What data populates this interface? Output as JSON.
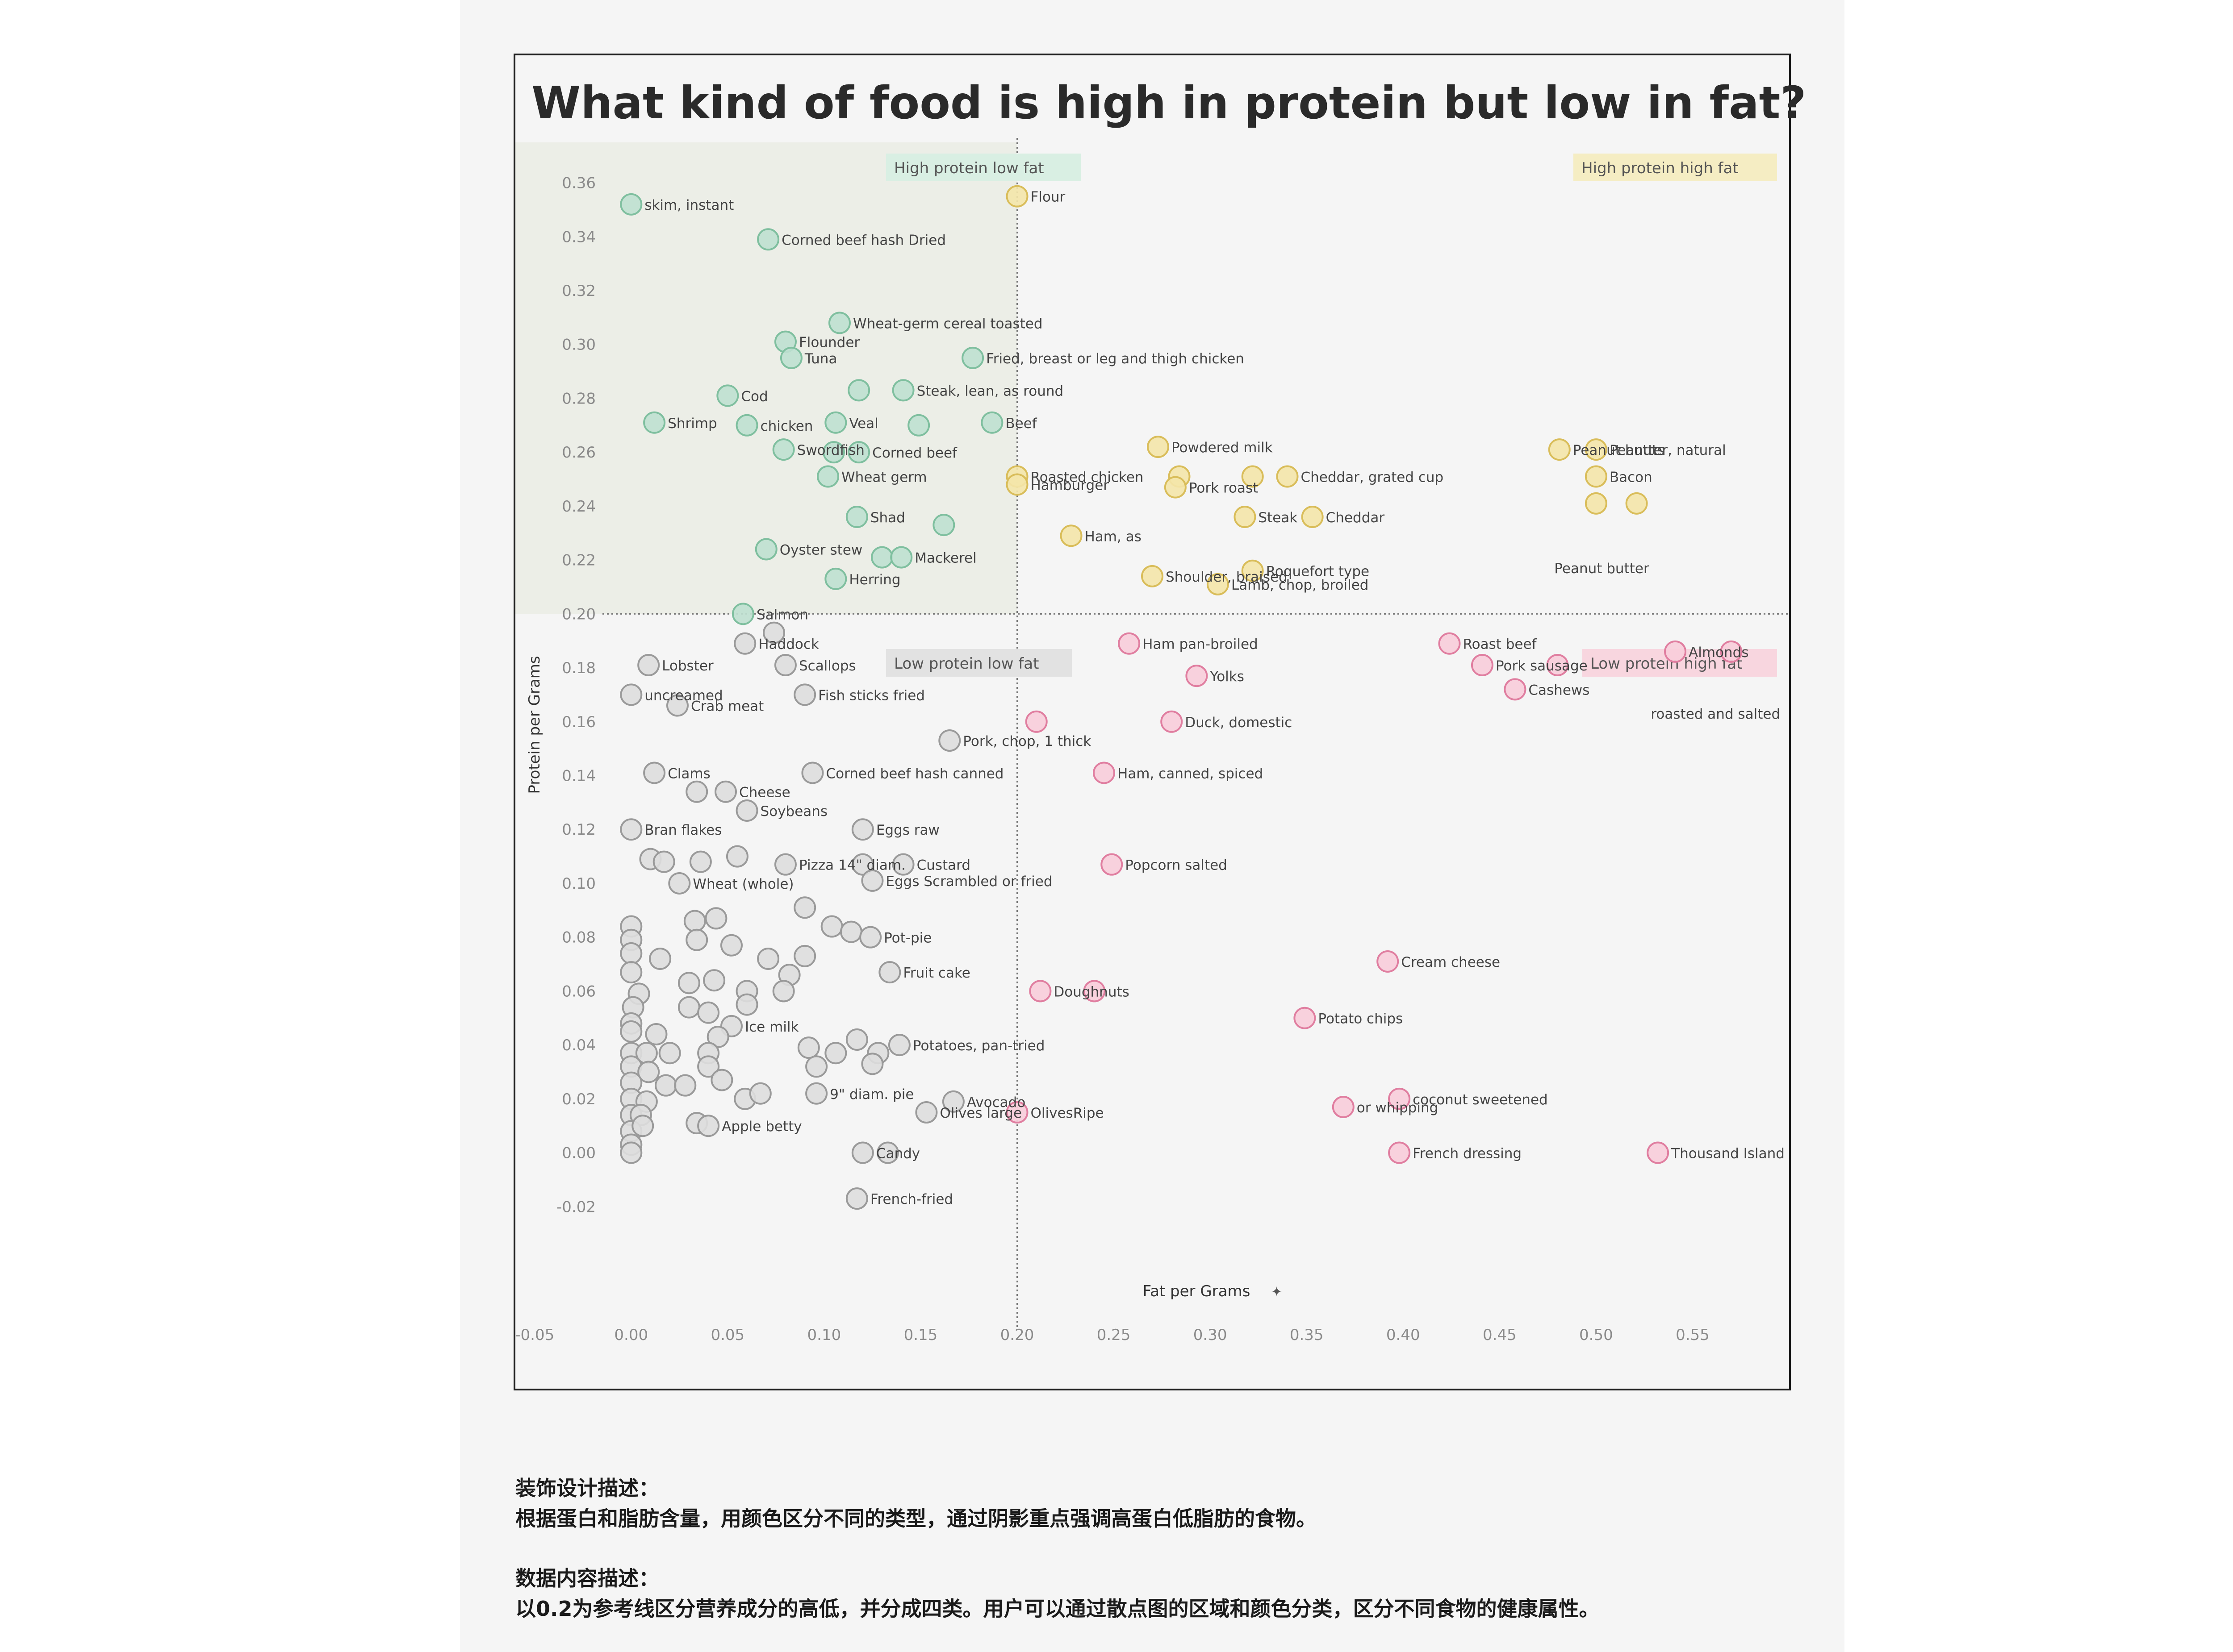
{
  "chart_data": {
    "type": "scatter",
    "title": "What kind of food is high in protein but low in fat?",
    "xlabel": "Fat per Grams",
    "ylabel": "Protein per Grams",
    "xlim": [
      -0.06,
      0.6
    ],
    "ylim": [
      -0.04,
      0.375
    ],
    "x_ticks": [
      "-0.05",
      "0.00",
      "0.05",
      "0.10",
      "0.15",
      "0.20",
      "0.25",
      "0.30",
      "0.35",
      "0.40",
      "0.45",
      "0.50",
      "0.55"
    ],
    "y_ticks": [
      "-0.02",
      "0.00",
      "0.02",
      "0.04",
      "0.06",
      "0.08",
      "0.10",
      "0.12",
      "0.14",
      "0.16",
      "0.18",
      "0.20",
      "0.22",
      "0.24",
      "0.26",
      "0.28",
      "0.30",
      "0.32",
      "0.34",
      "0.36"
    ],
    "reference_lines": {
      "x": 0.2,
      "y": 0.2
    },
    "quadrants": [
      {
        "name": "High protein low fat",
        "color": "#8fcbb0"
      },
      {
        "name": "High protein high fat",
        "color": "#ead27a"
      },
      {
        "name": "Low protein low fat",
        "color": "#a7a7a7"
      },
      {
        "name": "Low protein high fat",
        "color": "#ee96b0"
      }
    ],
    "points": [
      {
        "x": 0.0,
        "y": 0.352,
        "q": 0,
        "label": "skim, instant"
      },
      {
        "x": 0.071,
        "y": 0.339,
        "q": 0,
        "label": "Corned beef hash Dried"
      },
      {
        "x": 0.108,
        "y": 0.308,
        "q": 0,
        "label": "Wheat-germ cereal toasted"
      },
      {
        "x": 0.08,
        "y": 0.301,
        "q": 0,
        "label": "Flounder"
      },
      {
        "x": 0.083,
        "y": 0.295,
        "q": 0,
        "label": "Tuna"
      },
      {
        "x": 0.177,
        "y": 0.295,
        "q": 0,
        "label": "Fried, breast or leg and thigh chicken"
      },
      {
        "x": 0.05,
        "y": 0.281,
        "q": 0,
        "label": "Cod"
      },
      {
        "x": 0.118,
        "y": 0.283,
        "q": 0,
        "label": ""
      },
      {
        "x": 0.141,
        "y": 0.283,
        "q": 0,
        "label": "Steak, lean, as round"
      },
      {
        "x": 0.012,
        "y": 0.271,
        "q": 0,
        "label": "Shrimp"
      },
      {
        "x": 0.06,
        "y": 0.27,
        "q": 0,
        "label": "chicken"
      },
      {
        "x": 0.106,
        "y": 0.271,
        "q": 0,
        "label": "Veal"
      },
      {
        "x": 0.149,
        "y": 0.27,
        "q": 0,
        "label": ""
      },
      {
        "x": 0.187,
        "y": 0.271,
        "q": 0,
        "label": "Beef"
      },
      {
        "x": 0.079,
        "y": 0.261,
        "q": 0,
        "label": "Swordfish"
      },
      {
        "x": 0.105,
        "y": 0.26,
        "q": 0,
        "label": ""
      },
      {
        "x": 0.118,
        "y": 0.26,
        "q": 0,
        "label": "Corned beef"
      },
      {
        "x": 0.102,
        "y": 0.251,
        "q": 0,
        "label": "Wheat germ"
      },
      {
        "x": 0.117,
        "y": 0.236,
        "q": 0,
        "label": "Shad"
      },
      {
        "x": 0.162,
        "y": 0.233,
        "q": 0,
        "label": ""
      },
      {
        "x": 0.07,
        "y": 0.224,
        "q": 0,
        "label": "Oyster stew"
      },
      {
        "x": 0.13,
        "y": 0.221,
        "q": 0,
        "label": ""
      },
      {
        "x": 0.14,
        "y": 0.221,
        "q": 0,
        "label": "Mackerel"
      },
      {
        "x": 0.106,
        "y": 0.213,
        "q": 0,
        "label": "Herring"
      },
      {
        "x": 0.058,
        "y": 0.2,
        "q": 0,
        "label": "Salmon"
      },
      {
        "x": 0.2,
        "y": 0.355,
        "q": 1,
        "label": "Flour"
      },
      {
        "x": 0.273,
        "y": 0.262,
        "q": 1,
        "label": "Powdered milk"
      },
      {
        "x": 0.481,
        "y": 0.261,
        "q": 1,
        "label": "Peanut butter, natural"
      },
      {
        "x": 0.5,
        "y": 0.261,
        "q": 1,
        "label": "Peanuts"
      },
      {
        "x": 0.2,
        "y": 0.251,
        "q": 1,
        "label": "Roasted chicken"
      },
      {
        "x": 0.2,
        "y": 0.248,
        "q": 1,
        "label": "Hamburger"
      },
      {
        "x": 0.284,
        "y": 0.251,
        "q": 1,
        "label": ""
      },
      {
        "x": 0.282,
        "y": 0.247,
        "q": 1,
        "label": "Pork roast"
      },
      {
        "x": 0.322,
        "y": 0.251,
        "q": 1,
        "label": ""
      },
      {
        "x": 0.34,
        "y": 0.251,
        "q": 1,
        "label": "Cheddar, grated cup"
      },
      {
        "x": 0.5,
        "y": 0.251,
        "q": 1,
        "label": "Bacon"
      },
      {
        "x": 0.5,
        "y": 0.241,
        "q": 1,
        "label": ""
      },
      {
        "x": 0.521,
        "y": 0.241,
        "q": 1,
        "label": ""
      },
      {
        "x": 0.318,
        "y": 0.236,
        "q": 1,
        "label": "Steak"
      },
      {
        "x": 0.353,
        "y": 0.236,
        "q": 1,
        "label": "Cheddar"
      },
      {
        "x": 0.228,
        "y": 0.229,
        "q": 1,
        "label": "Ham, as"
      },
      {
        "x": 0.322,
        "y": 0.216,
        "q": 1,
        "label": "Roquefort type"
      },
      {
        "x": 0.27,
        "y": 0.214,
        "q": 1,
        "label": "Shoulder, braised"
      },
      {
        "x": 0.304,
        "y": 0.211,
        "q": 1,
        "label": "Lamb, chop, broiled"
      },
      {
        "x": 0.074,
        "y": 0.193,
        "q": 2,
        "label": ""
      },
      {
        "x": 0.059,
        "y": 0.189,
        "q": 2,
        "label": "Haddock"
      },
      {
        "x": 0.009,
        "y": 0.181,
        "q": 2,
        "label": "Lobster"
      },
      {
        "x": 0.08,
        "y": 0.181,
        "q": 2,
        "label": "Scallops"
      },
      {
        "x": 0.0,
        "y": 0.17,
        "q": 2,
        "label": "uncreamed"
      },
      {
        "x": 0.09,
        "y": 0.17,
        "q": 2,
        "label": "Fish sticks fried"
      },
      {
        "x": 0.024,
        "y": 0.166,
        "q": 2,
        "label": "Crab meat"
      },
      {
        "x": 0.165,
        "y": 0.153,
        "q": 2,
        "label": "Pork, chop, 1 thick"
      },
      {
        "x": 0.012,
        "y": 0.141,
        "q": 2,
        "label": "Clams"
      },
      {
        "x": 0.094,
        "y": 0.141,
        "q": 2,
        "label": "Corned beef hash canned"
      },
      {
        "x": 0.034,
        "y": 0.134,
        "q": 2,
        "label": ""
      },
      {
        "x": 0.049,
        "y": 0.134,
        "q": 2,
        "label": "Cheese"
      },
      {
        "x": 0.06,
        "y": 0.127,
        "q": 2,
        "label": "Soybeans"
      },
      {
        "x": 0.0,
        "y": 0.12,
        "q": 2,
        "label": "Bran flakes"
      },
      {
        "x": 0.12,
        "y": 0.12,
        "q": 2,
        "label": "Eggs raw"
      },
      {
        "x": 0.01,
        "y": 0.109,
        "q": 2,
        "label": ""
      },
      {
        "x": 0.017,
        "y": 0.108,
        "q": 2,
        "label": ""
      },
      {
        "x": 0.036,
        "y": 0.108,
        "q": 2,
        "label": ""
      },
      {
        "x": 0.055,
        "y": 0.11,
        "q": 2,
        "label": ""
      },
      {
        "x": 0.08,
        "y": 0.107,
        "q": 2,
        "label": "Pizza 14\" diam."
      },
      {
        "x": 0.12,
        "y": 0.107,
        "q": 2,
        "label": ""
      },
      {
        "x": 0.141,
        "y": 0.107,
        "q": 2,
        "label": "Custard"
      },
      {
        "x": 0.025,
        "y": 0.1,
        "q": 2,
        "label": "Wheat (whole)"
      },
      {
        "x": 0.125,
        "y": 0.101,
        "q": 2,
        "label": "Eggs Scrambled or fried"
      },
      {
        "x": 0.09,
        "y": 0.091,
        "q": 2,
        "label": ""
      },
      {
        "x": 0.033,
        "y": 0.086,
        "q": 2,
        "label": ""
      },
      {
        "x": 0.044,
        "y": 0.087,
        "q": 2,
        "label": ""
      },
      {
        "x": 0.0,
        "y": 0.084,
        "q": 2,
        "label": ""
      },
      {
        "x": 0.0,
        "y": 0.079,
        "q": 2,
        "label": ""
      },
      {
        "x": 0.0,
        "y": 0.074,
        "q": 2,
        "label": ""
      },
      {
        "x": 0.0,
        "y": 0.067,
        "q": 2,
        "label": ""
      },
      {
        "x": 0.104,
        "y": 0.084,
        "q": 2,
        "label": ""
      },
      {
        "x": 0.114,
        "y": 0.082,
        "q": 2,
        "label": ""
      },
      {
        "x": 0.124,
        "y": 0.08,
        "q": 2,
        "label": "Pot-pie"
      },
      {
        "x": 0.034,
        "y": 0.079,
        "q": 2,
        "label": ""
      },
      {
        "x": 0.052,
        "y": 0.077,
        "q": 2,
        "label": ""
      },
      {
        "x": 0.015,
        "y": 0.072,
        "q": 2,
        "label": ""
      },
      {
        "x": 0.071,
        "y": 0.072,
        "q": 2,
        "label": ""
      },
      {
        "x": 0.09,
        "y": 0.073,
        "q": 2,
        "label": ""
      },
      {
        "x": 0.082,
        "y": 0.066,
        "q": 2,
        "label": ""
      },
      {
        "x": 0.134,
        "y": 0.067,
        "q": 2,
        "label": "Fruit cake"
      },
      {
        "x": 0.03,
        "y": 0.063,
        "q": 2,
        "label": ""
      },
      {
        "x": 0.043,
        "y": 0.064,
        "q": 2,
        "label": ""
      },
      {
        "x": 0.004,
        "y": 0.059,
        "q": 2,
        "label": ""
      },
      {
        "x": 0.06,
        "y": 0.06,
        "q": 2,
        "label": ""
      },
      {
        "x": 0.079,
        "y": 0.06,
        "q": 2,
        "label": ""
      },
      {
        "x": 0.001,
        "y": 0.054,
        "q": 2,
        "label": ""
      },
      {
        "x": 0.03,
        "y": 0.054,
        "q": 2,
        "label": ""
      },
      {
        "x": 0.04,
        "y": 0.052,
        "q": 2,
        "label": ""
      },
      {
        "x": 0.06,
        "y": 0.055,
        "q": 2,
        "label": ""
      },
      {
        "x": 0.0,
        "y": 0.048,
        "q": 2,
        "label": ""
      },
      {
        "x": 0.0,
        "y": 0.045,
        "q": 2,
        "label": ""
      },
      {
        "x": 0.052,
        "y": 0.047,
        "q": 2,
        "label": "Ice milk"
      },
      {
        "x": 0.013,
        "y": 0.044,
        "q": 2,
        "label": ""
      },
      {
        "x": 0.045,
        "y": 0.043,
        "q": 2,
        "label": ""
      },
      {
        "x": 0.117,
        "y": 0.042,
        "q": 2,
        "label": ""
      },
      {
        "x": 0.139,
        "y": 0.04,
        "q": 2,
        "label": "Potatoes, pan-tried"
      },
      {
        "x": 0.092,
        "y": 0.039,
        "q": 2,
        "label": ""
      },
      {
        "x": 0.0,
        "y": 0.037,
        "q": 2,
        "label": ""
      },
      {
        "x": 0.008,
        "y": 0.037,
        "q": 2,
        "label": ""
      },
      {
        "x": 0.02,
        "y": 0.037,
        "q": 2,
        "label": ""
      },
      {
        "x": 0.04,
        "y": 0.037,
        "q": 2,
        "label": ""
      },
      {
        "x": 0.106,
        "y": 0.037,
        "q": 2,
        "label": ""
      },
      {
        "x": 0.128,
        "y": 0.037,
        "q": 2,
        "label": ""
      },
      {
        "x": 0.0,
        "y": 0.032,
        "q": 2,
        "label": ""
      },
      {
        "x": 0.009,
        "y": 0.03,
        "q": 2,
        "label": ""
      },
      {
        "x": 0.04,
        "y": 0.032,
        "q": 2,
        "label": ""
      },
      {
        "x": 0.096,
        "y": 0.032,
        "q": 2,
        "label": ""
      },
      {
        "x": 0.125,
        "y": 0.033,
        "q": 2,
        "label": ""
      },
      {
        "x": 0.0,
        "y": 0.026,
        "q": 2,
        "label": ""
      },
      {
        "x": 0.018,
        "y": 0.025,
        "q": 2,
        "label": ""
      },
      {
        "x": 0.028,
        "y": 0.025,
        "q": 2,
        "label": ""
      },
      {
        "x": 0.047,
        "y": 0.027,
        "q": 2,
        "label": ""
      },
      {
        "x": 0.0,
        "y": 0.02,
        "q": 2,
        "label": ""
      },
      {
        "x": 0.008,
        "y": 0.019,
        "q": 2,
        "label": ""
      },
      {
        "x": 0.059,
        "y": 0.02,
        "q": 2,
        "label": ""
      },
      {
        "x": 0.067,
        "y": 0.022,
        "q": 2,
        "label": ""
      },
      {
        "x": 0.096,
        "y": 0.022,
        "q": 2,
        "label": "9\" diam. pie"
      },
      {
        "x": 0.0,
        "y": 0.014,
        "q": 2,
        "label": ""
      },
      {
        "x": 0.005,
        "y": 0.014,
        "q": 2,
        "label": ""
      },
      {
        "x": 0.153,
        "y": 0.015,
        "q": 2,
        "label": "Olives large"
      },
      {
        "x": 0.167,
        "y": 0.019,
        "q": 2,
        "label": "Avocado"
      },
      {
        "x": 0.0,
        "y": 0.008,
        "q": 2,
        "label": ""
      },
      {
        "x": 0.006,
        "y": 0.01,
        "q": 2,
        "label": ""
      },
      {
        "x": 0.034,
        "y": 0.011,
        "q": 2,
        "label": ""
      },
      {
        "x": 0.04,
        "y": 0.01,
        "q": 2,
        "label": "Apple betty"
      },
      {
        "x": 0.0,
        "y": 0.003,
        "q": 2,
        "label": ""
      },
      {
        "x": 0.0,
        "y": 0.0,
        "q": 2,
        "label": ""
      },
      {
        "x": 0.12,
        "y": 0.0,
        "q": 2,
        "label": "Candy"
      },
      {
        "x": 0.133,
        "y": 0.0,
        "q": 2,
        "label": ""
      },
      {
        "x": 0.117,
        "y": -0.017,
        "q": 2,
        "label": "French-fried"
      },
      {
        "x": 0.258,
        "y": 0.189,
        "q": 3,
        "label": "Ham pan-broiled"
      },
      {
        "x": 0.424,
        "y": 0.189,
        "q": 3,
        "label": "Roast beef"
      },
      {
        "x": 0.541,
        "y": 0.186,
        "q": 3,
        "label": "Almonds"
      },
      {
        "x": 0.57,
        "y": 0.186,
        "q": 3,
        "label": ""
      },
      {
        "x": 0.441,
        "y": 0.181,
        "q": 3,
        "label": "Pork sausage"
      },
      {
        "x": 0.48,
        "y": 0.181,
        "q": 3,
        "label": ""
      },
      {
        "x": 0.293,
        "y": 0.177,
        "q": 3,
        "label": "Yolks"
      },
      {
        "x": 0.458,
        "y": 0.172,
        "q": 3,
        "label": "Cashews"
      },
      {
        "x": 0.21,
        "y": 0.16,
        "q": 3,
        "label": ""
      },
      {
        "x": 0.28,
        "y": 0.16,
        "q": 3,
        "label": "Duck, domestic"
      },
      {
        "x": 0.245,
        "y": 0.141,
        "q": 3,
        "label": "Ham, canned, spiced"
      },
      {
        "x": 0.249,
        "y": 0.107,
        "q": 3,
        "label": "Popcorn salted"
      },
      {
        "x": 0.392,
        "y": 0.071,
        "q": 3,
        "label": "Cream cheese"
      },
      {
        "x": 0.212,
        "y": 0.06,
        "q": 3,
        "label": "Doughnuts"
      },
      {
        "x": 0.24,
        "y": 0.06,
        "q": 3,
        "label": ""
      },
      {
        "x": 0.349,
        "y": 0.05,
        "q": 3,
        "label": "Potato chips"
      },
      {
        "x": 0.398,
        "y": 0.02,
        "q": 3,
        "label": "coconut sweetened"
      },
      {
        "x": 0.369,
        "y": 0.017,
        "q": 3,
        "label": "or whipping"
      },
      {
        "x": 0.2,
        "y": 0.015,
        "q": 3,
        "label": "OlivesRipe"
      },
      {
        "x": 0.398,
        "y": 0.0,
        "q": 3,
        "label": "French dressing"
      },
      {
        "x": 0.532,
        "y": 0.0,
        "q": 3,
        "label": "Thousand Island sauce"
      }
    ],
    "extra_labels": [
      {
        "x": 0.57,
        "y": 0.186,
        "text": "roasted and salted"
      },
      {
        "x": 0.52,
        "y": 0.24,
        "text": "Peanut butter"
      }
    ]
  },
  "description": {
    "design_heading": "装饰设计描述：",
    "design_text": "根据蛋白和脂肪含量，用颜色区分不同的类型，通过阴影重点强调高蛋白低脂肪的食物。",
    "content_heading": "数据内容描述：",
    "content_text": "以0.2为参考线区分营养成分的高低，并分成四类。用户可以通过散点图的区域和颜色分类，区分不同食物的健康属性。"
  }
}
